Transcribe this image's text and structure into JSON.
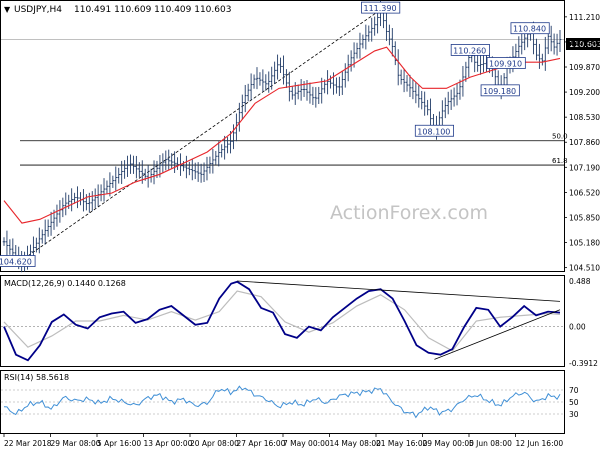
{
  "header": {
    "symbol": "USDJPY,H4",
    "ohlc": "110.491 110.609 110.409 110.603"
  },
  "watermark": "ActionForex.com",
  "colors": {
    "candle": "#1f3a66",
    "sma": "#e8262b",
    "macd_line": "#000088",
    "macd_signal": "#bdbdbd",
    "rsi": "#3f8fd6",
    "trendline": "#000000",
    "fib": "#000000",
    "label_border": "#1f3a8a",
    "label_text": "#1f3a8a",
    "grid_dotted": "#9a9a9a"
  },
  "chart_data": [
    {
      "type": "candlestick",
      "ylim": [
        104.5,
        111.5
      ],
      "yticks": [
        "111.210",
        "110.540",
        "109.870",
        "109.200",
        "108.530",
        "107.860",
        "107.190",
        "106.520",
        "105.850",
        "105.180",
        "104.510"
      ],
      "current_price": "110.603",
      "xlabels": [
        "22 Mar 2018",
        "29 Mar 08:00",
        "5 Apr 16:00",
        "13 Apr 00:00",
        "20 Apr 08:00",
        "27 Apr 16:00",
        "7 May 00:00",
        "14 May 08:00",
        "21 May 16:00",
        "29 May 00:00",
        "5 Jun 08:00",
        "12 Jun 16:00"
      ],
      "price_path": [
        [
          0,
          105.2
        ],
        [
          3,
          104.6
        ],
        [
          6,
          105.3
        ],
        [
          10,
          106.2
        ],
        [
          12,
          106.4
        ],
        [
          14,
          106.2
        ],
        [
          18,
          106.8
        ],
        [
          21,
          107.3
        ],
        [
          24,
          106.9
        ],
        [
          27,
          107.4
        ],
        [
          30,
          107.2
        ],
        [
          33,
          107.0
        ],
        [
          36,
          107.6
        ],
        [
          38,
          107.9
        ],
        [
          40,
          109.0
        ],
        [
          42,
          109.6
        ],
        [
          44,
          109.4
        ],
        [
          46,
          110.0
        ],
        [
          48,
          109.1
        ],
        [
          50,
          109.3
        ],
        [
          52,
          109.0
        ],
        [
          54,
          109.5
        ],
        [
          56,
          109.3
        ],
        [
          58,
          110.1
        ],
        [
          60,
          110.6
        ],
        [
          62,
          111.0
        ],
        [
          63,
          111.39
        ],
        [
          64,
          110.8
        ],
        [
          65,
          110.4
        ],
        [
          66,
          109.6
        ],
        [
          68,
          109.3
        ],
        [
          70,
          108.9
        ],
        [
          71,
          108.7
        ],
        [
          72,
          108.1
        ],
        [
          73,
          108.6
        ],
        [
          74,
          108.9
        ],
        [
          76,
          109.2
        ],
        [
          78,
          110.26
        ],
        [
          79,
          109.9
        ],
        [
          81,
          110.0
        ],
        [
          82,
          109.7
        ],
        [
          83,
          109.18
        ],
        [
          84,
          109.8
        ],
        [
          86,
          110.4
        ],
        [
          88,
          110.84
        ],
        [
          89,
          110.2
        ],
        [
          90,
          110.0
        ],
        [
          91,
          110.7
        ],
        [
          92,
          110.4
        ],
        [
          93,
          110.603
        ]
      ],
      "sma_path": [
        [
          0,
          106.3
        ],
        [
          3,
          105.7
        ],
        [
          6,
          105.8
        ],
        [
          10,
          106.1
        ],
        [
          14,
          106.4
        ],
        [
          18,
          106.5
        ],
        [
          22,
          106.8
        ],
        [
          26,
          107.0
        ],
        [
          30,
          107.3
        ],
        [
          34,
          107.6
        ],
        [
          38,
          108.1
        ],
        [
          42,
          108.9
        ],
        [
          46,
          109.3
        ],
        [
          50,
          109.4
        ],
        [
          54,
          109.5
        ],
        [
          58,
          109.9
        ],
        [
          62,
          110.3
        ],
        [
          64,
          110.4
        ],
        [
          66,
          110.0
        ],
        [
          68,
          109.6
        ],
        [
          70,
          109.3
        ],
        [
          74,
          109.3
        ],
        [
          78,
          109.6
        ],
        [
          82,
          109.8
        ],
        [
          86,
          110.0
        ],
        [
          90,
          110.0
        ],
        [
          93,
          110.1
        ]
      ],
      "trendline": [
        [
          2,
          104.6
        ],
        [
          63,
          111.4
        ]
      ],
      "fib_levels": [
        {
          "label": "50.0",
          "price": 107.9
        },
        {
          "label": "61.8",
          "price": 107.25
        }
      ],
      "price_labels": [
        {
          "text": "111.390",
          "x": 63,
          "price": 111.39
        },
        {
          "text": "110.840",
          "x": 88,
          "price": 110.84
        },
        {
          "text": "110.260",
          "x": 78,
          "price": 110.26
        },
        {
          "text": "109.910",
          "x": 84,
          "price": 109.91
        },
        {
          "text": "109.180",
          "x": 83,
          "price": 109.18
        },
        {
          "text": "108.100",
          "x": 72,
          "price": 108.1
        },
        {
          "text": "104.620",
          "x": 2,
          "price": 104.62
        }
      ]
    },
    {
      "type": "line",
      "name": "MACD(12,26,9) 0.1440 0.1268",
      "yticks": [
        "0.488",
        "0.00",
        "-0.3912"
      ],
      "ylim": [
        -0.4,
        0.52
      ],
      "macd_path": [
        [
          0,
          0.0
        ],
        [
          2,
          -0.3
        ],
        [
          4,
          -0.36
        ],
        [
          6,
          -0.2
        ],
        [
          8,
          0.05
        ],
        [
          10,
          0.13
        ],
        [
          12,
          0.02
        ],
        [
          14,
          -0.02
        ],
        [
          16,
          0.1
        ],
        [
          18,
          0.14
        ],
        [
          20,
          0.16
        ],
        [
          22,
          0.04
        ],
        [
          24,
          0.08
        ],
        [
          26,
          0.18
        ],
        [
          28,
          0.22
        ],
        [
          30,
          0.12
        ],
        [
          32,
          0.02
        ],
        [
          34,
          0.04
        ],
        [
          36,
          0.3
        ],
        [
          38,
          0.46
        ],
        [
          39,
          0.48
        ],
        [
          41,
          0.4
        ],
        [
          43,
          0.2
        ],
        [
          45,
          0.15
        ],
        [
          47,
          -0.08
        ],
        [
          49,
          -0.12
        ],
        [
          51,
          0.0
        ],
        [
          53,
          -0.04
        ],
        [
          55,
          0.1
        ],
        [
          57,
          0.2
        ],
        [
          59,
          0.3
        ],
        [
          61,
          0.38
        ],
        [
          63,
          0.4
        ],
        [
          65,
          0.3
        ],
        [
          67,
          0.06
        ],
        [
          69,
          -0.2
        ],
        [
          71,
          -0.28
        ],
        [
          73,
          -0.3
        ],
        [
          75,
          -0.24
        ],
        [
          77,
          0.0
        ],
        [
          79,
          0.2
        ],
        [
          81,
          0.18
        ],
        [
          83,
          0.0
        ],
        [
          85,
          0.1
        ],
        [
          87,
          0.22
        ],
        [
          89,
          0.12
        ],
        [
          91,
          0.16
        ],
        [
          93,
          0.15
        ]
      ],
      "signal_path": [
        [
          0,
          0.05
        ],
        [
          4,
          -0.22
        ],
        [
          8,
          -0.1
        ],
        [
          12,
          0.06
        ],
        [
          16,
          0.06
        ],
        [
          20,
          0.12
        ],
        [
          24,
          0.07
        ],
        [
          28,
          0.16
        ],
        [
          32,
          0.07
        ],
        [
          36,
          0.16
        ],
        [
          39,
          0.38
        ],
        [
          43,
          0.32
        ],
        [
          47,
          0.05
        ],
        [
          51,
          -0.06
        ],
        [
          55,
          0.04
        ],
        [
          59,
          0.22
        ],
        [
          63,
          0.34
        ],
        [
          67,
          0.18
        ],
        [
          71,
          -0.12
        ],
        [
          75,
          -0.26
        ],
        [
          79,
          0.06
        ],
        [
          83,
          0.1
        ],
        [
          87,
          0.12
        ],
        [
          91,
          0.14
        ],
        [
          93,
          0.13
        ]
      ],
      "trendlines": [
        [
          [
            39,
            0.488
          ],
          [
            93,
            0.27
          ]
        ],
        [
          [
            72,
            -0.35
          ],
          [
            93,
            0.18
          ]
        ]
      ]
    },
    {
      "type": "line",
      "name": "RSI(14) 58.5618",
      "yticks": [
        "70",
        "50",
        "30"
      ],
      "ylim": [
        0,
        100
      ],
      "rsi_path": [
        [
          0,
          42
        ],
        [
          2,
          30
        ],
        [
          4,
          45
        ],
        [
          6,
          50
        ],
        [
          8,
          38
        ],
        [
          10,
          58
        ],
        [
          12,
          52
        ],
        [
          14,
          55
        ],
        [
          16,
          48
        ],
        [
          18,
          56
        ],
        [
          20,
          50
        ],
        [
          22,
          44
        ],
        [
          24,
          57
        ],
        [
          26,
          62
        ],
        [
          28,
          50
        ],
        [
          30,
          55
        ],
        [
          32,
          44
        ],
        [
          34,
          48
        ],
        [
          36,
          72
        ],
        [
          38,
          66
        ],
        [
          40,
          75
        ],
        [
          42,
          62
        ],
        [
          44,
          54
        ],
        [
          46,
          42
        ],
        [
          48,
          50
        ],
        [
          50,
          45
        ],
        [
          52,
          56
        ],
        [
          54,
          48
        ],
        [
          56,
          60
        ],
        [
          58,
          64
        ],
        [
          60,
          66
        ],
        [
          62,
          70
        ],
        [
          63,
          72
        ],
        [
          65,
          50
        ],
        [
          67,
          34
        ],
        [
          69,
          28
        ],
        [
          71,
          42
        ],
        [
          73,
          32
        ],
        [
          75,
          38
        ],
        [
          77,
          55
        ],
        [
          79,
          62
        ],
        [
          81,
          52
        ],
        [
          83,
          44
        ],
        [
          85,
          60
        ],
        [
          87,
          66
        ],
        [
          89,
          50
        ],
        [
          91,
          60
        ],
        [
          93,
          58.56
        ]
      ]
    }
  ]
}
